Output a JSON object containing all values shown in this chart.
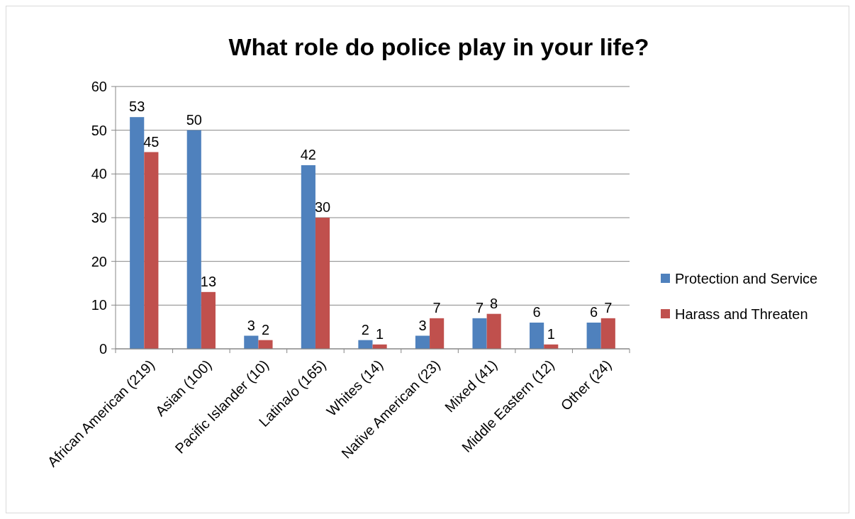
{
  "chart_data": {
    "type": "bar",
    "title": "What role do police play in your life?",
    "categories": [
      "African American (219)",
      "Asian (100)",
      "Pacific Islander (10)",
      "Latina/o (165)",
      "Whites (14)",
      "Native American (23)",
      "Mixed (41)",
      "Middle Eastern (12)",
      "Other (24)"
    ],
    "series": [
      {
        "name": "Protection and Service",
        "color": "#4f81bd",
        "values": [
          53,
          50,
          3,
          42,
          2,
          3,
          7,
          6,
          6
        ]
      },
      {
        "name": "Harass and Threaten",
        "color": "#c0504d",
        "values": [
          45,
          13,
          2,
          30,
          1,
          7,
          8,
          1,
          7
        ]
      }
    ],
    "ylim": [
      0,
      60
    ],
    "yticks": [
      0,
      10,
      20,
      30,
      40,
      50,
      60
    ],
    "grid": "y",
    "legend": "right",
    "data_labels": true
  }
}
